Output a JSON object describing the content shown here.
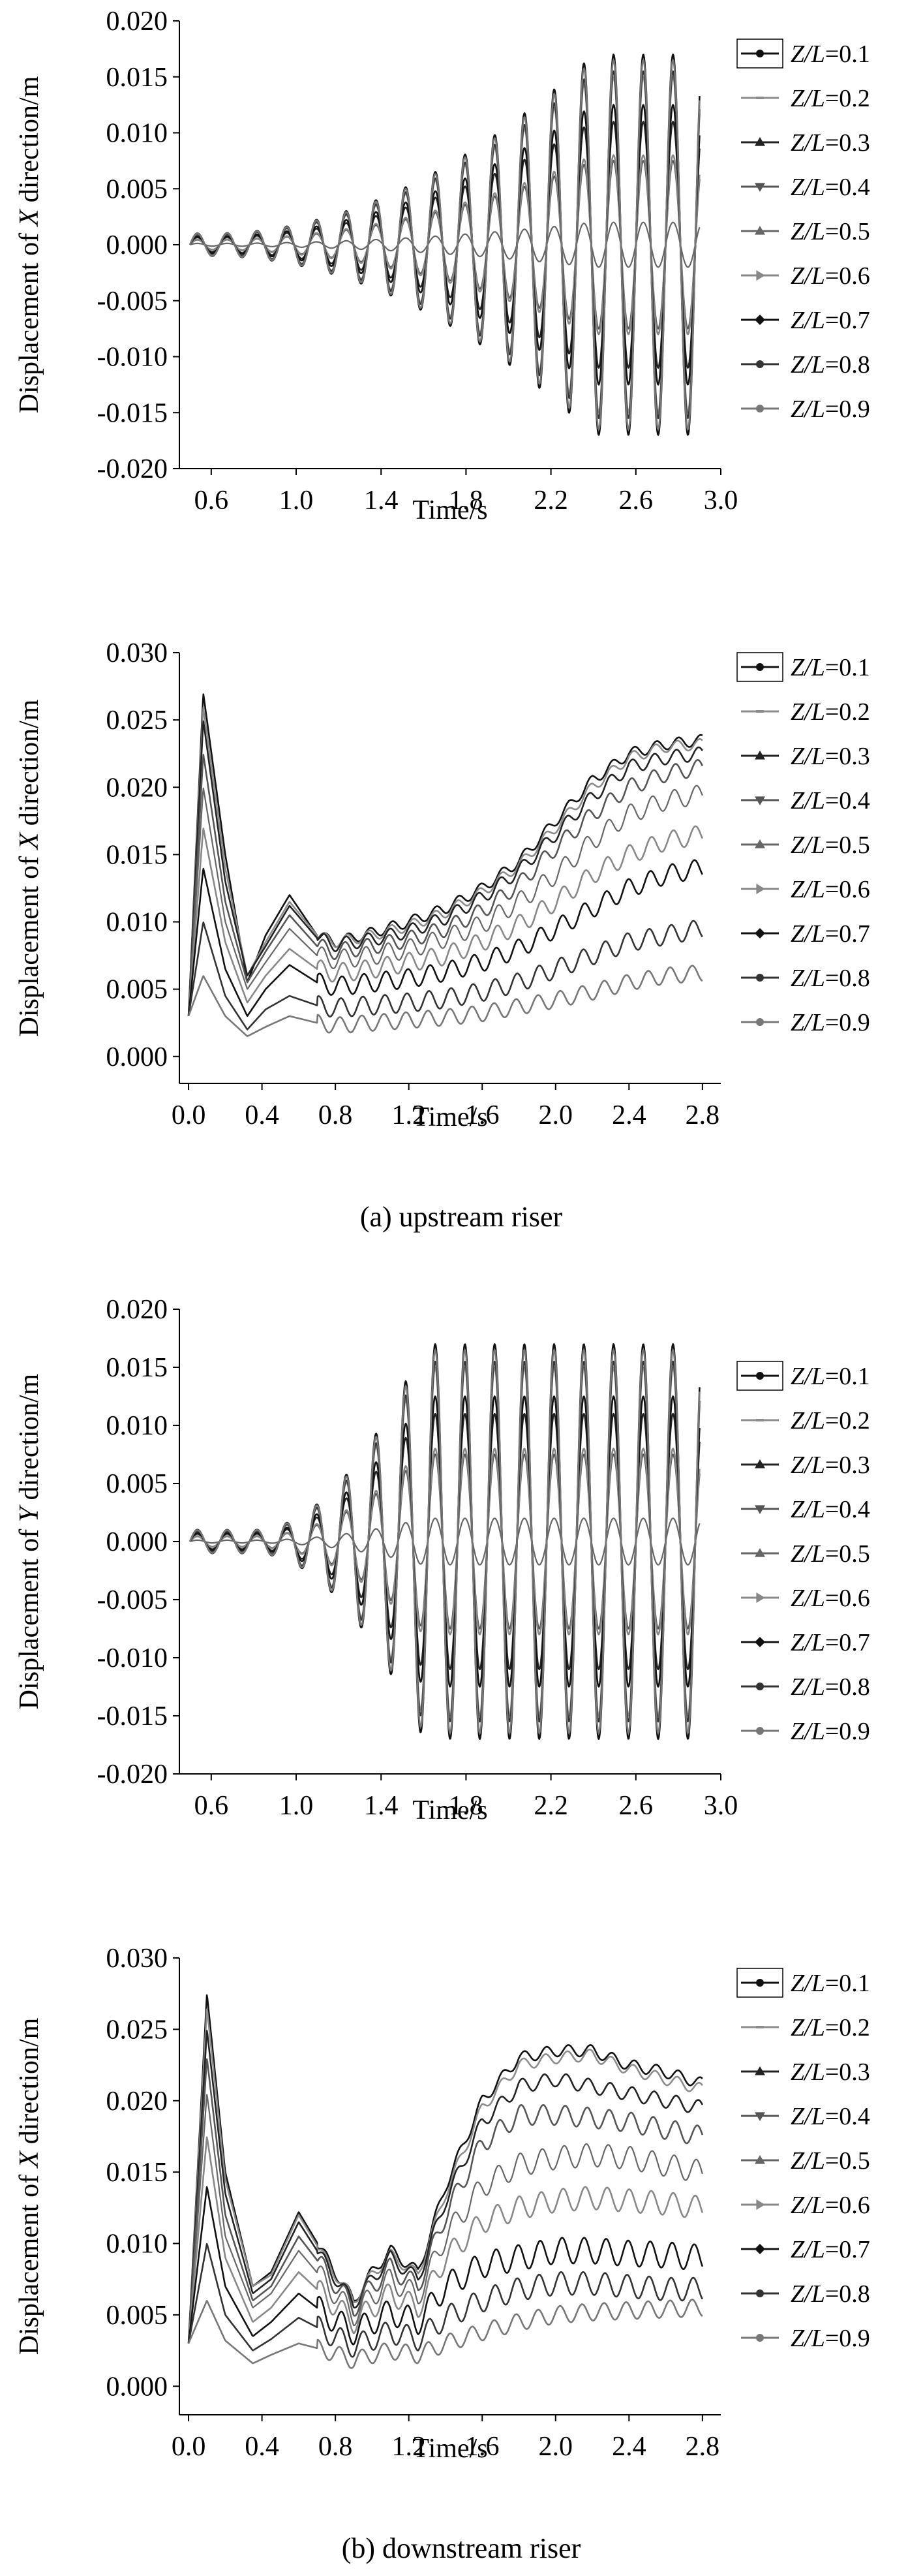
{
  "colors": {
    "axis": "#000000",
    "background": "#ffffff"
  },
  "chart_data": [
    {
      "type": "line",
      "ylabel_prefix": "Displacement of ",
      "ylabel_var": "X",
      "ylabel_suffix": " direction/m",
      "xlabel": "Time/s",
      "xlim": [
        0.45,
        3.0
      ],
      "ylim": [
        -0.02,
        0.02
      ],
      "xticks": [
        0.6,
        1.0,
        1.4,
        1.8,
        2.2,
        2.6,
        3.0
      ],
      "xtick_labels": [
        "0.6",
        "1.0",
        "1.4",
        "1.8",
        "2.2",
        "2.6",
        "3.0"
      ],
      "yticks": [
        0.02,
        0.015,
        0.01,
        0.005,
        0.0,
        -0.005,
        -0.01,
        -0.015,
        -0.02
      ],
      "ytick_labels": [
        "0.020",
        "0.015",
        "0.010",
        "0.005",
        "0.000",
        "-0.005",
        "-0.010",
        "-0.015",
        "-0.020"
      ],
      "legend_position": "right",
      "caption": "",
      "model": {
        "kind": "osc",
        "t0": 0.5,
        "t1": 2.9,
        "period": 0.14,
        "ramp_start": 0.6,
        "ramp_end": 2.4
      },
      "series": [
        {
          "name": "Z/L=0.1",
          "amp": 0.017,
          "color": "#111111",
          "marker": "circle"
        },
        {
          "name": "Z/L=0.2",
          "amp": 0.015,
          "color": "#8c8c8c",
          "marker": "dash"
        },
        {
          "name": "Z/L=0.3",
          "amp": 0.011,
          "color": "#222222",
          "marker": "triangle"
        },
        {
          "name": "Z/L=0.4",
          "amp": 0.0075,
          "color": "#555555",
          "marker": "tri-down"
        },
        {
          "name": "Z/L=0.5",
          "amp": 0.002,
          "color": "#666666",
          "marker": "triangle"
        },
        {
          "name": "Z/L=0.6",
          "amp": 0.008,
          "color": "#888888",
          "marker": "tri-right"
        },
        {
          "name": "Z/L=0.7",
          "amp": 0.0125,
          "color": "#111111",
          "marker": "diamond"
        },
        {
          "name": "Z/L=0.8",
          "amp": 0.0155,
          "color": "#333333",
          "marker": "circle"
        },
        {
          "name": "Z/L=0.9",
          "amp": 0.0165,
          "color": "#777777",
          "marker": "circle"
        }
      ]
    },
    {
      "type": "line",
      "ylabel_prefix": "Displacement of ",
      "ylabel_var": "X",
      "ylabel_suffix": " direction/m",
      "xlabel": "Time/s",
      "xlim": [
        -0.05,
        2.9
      ],
      "ylim": [
        -0.002,
        0.03
      ],
      "xticks": [
        0.0,
        0.4,
        0.8,
        1.2,
        1.6,
        2.0,
        2.4,
        2.8
      ],
      "xtick_labels": [
        "0.0",
        "0.4",
        "0.8",
        "1.2",
        "1.6",
        "2.0",
        "2.4",
        "2.8"
      ],
      "yticks": [
        0.03,
        0.025,
        0.02,
        0.015,
        0.01,
        0.005,
        0.0
      ],
      "ytick_labels": [
        "0.030",
        "0.025",
        "0.020",
        "0.015",
        "0.010",
        "0.005",
        "0.000"
      ],
      "legend_position": "right",
      "caption": "(a) upstream riser",
      "model": {
        "kind": "mean",
        "t0": 0.0,
        "t1": 2.8,
        "period": 0.12,
        "times": [
          0.0,
          0.08,
          0.2,
          0.32,
          0.42,
          0.55,
          0.7,
          0.8,
          1.0,
          1.2,
          1.4,
          1.6,
          1.8,
          2.0,
          2.2,
          2.4,
          2.6,
          2.8
        ]
      },
      "series": [
        {
          "name": "Z/L=0.1",
          "values": [
            0.003,
            0.027,
            0.015,
            0.0055,
            0.009,
            0.012,
            0.009,
            0.0085,
            0.0092,
            0.01,
            0.011,
            0.0125,
            0.0145,
            0.0175,
            0.0205,
            0.0225,
            0.0232,
            0.0235
          ],
          "wobble": 0.0004,
          "color": "#111111",
          "marker": "circle"
        },
        {
          "name": "Z/L=0.2",
          "values": [
            0.003,
            0.026,
            0.014,
            0.006,
            0.0085,
            0.0115,
            0.009,
            0.0085,
            0.009,
            0.0097,
            0.0107,
            0.0122,
            0.0142,
            0.017,
            0.02,
            0.0222,
            0.023,
            0.0232
          ],
          "wobble": 0.0004,
          "color": "#8c8c8c",
          "marker": "dash"
        },
        {
          "name": "Z/L=0.3",
          "values": [
            0.003,
            0.025,
            0.013,
            0.006,
            0.0082,
            0.0112,
            0.0088,
            0.0083,
            0.0087,
            0.0093,
            0.0103,
            0.0118,
            0.0138,
            0.0165,
            0.0193,
            0.0215,
            0.0222,
            0.0225
          ],
          "wobble": 0.0005,
          "color": "#222222",
          "marker": "triangle"
        },
        {
          "name": "Z/L=0.4",
          "values": [
            0.003,
            0.0225,
            0.0115,
            0.0055,
            0.0078,
            0.0105,
            0.0082,
            0.0078,
            0.0082,
            0.0087,
            0.0095,
            0.0108,
            0.0128,
            0.0155,
            0.018,
            0.02,
            0.021,
            0.0215
          ],
          "wobble": 0.0006,
          "color": "#555555",
          "marker": "tri-down"
        },
        {
          "name": "Z/L=0.5",
          "values": [
            0.003,
            0.02,
            0.01,
            0.005,
            0.007,
            0.0095,
            0.0075,
            0.0072,
            0.0075,
            0.008,
            0.0088,
            0.0098,
            0.0115,
            0.0135,
            0.016,
            0.018,
            0.019,
            0.0195
          ],
          "wobble": 0.0007,
          "color": "#666666",
          "marker": "triangle"
        },
        {
          "name": "Z/L=0.6",
          "values": [
            0.003,
            0.017,
            0.0085,
            0.004,
            0.006,
            0.008,
            0.0065,
            0.0062,
            0.0065,
            0.007,
            0.0075,
            0.0085,
            0.0098,
            0.0115,
            0.0135,
            0.015,
            0.016,
            0.0165
          ],
          "wobble": 0.0007,
          "color": "#888888",
          "marker": "tri-right"
        },
        {
          "name": "Z/L=0.7",
          "values": [
            0.003,
            0.014,
            0.0065,
            0.003,
            0.005,
            0.0068,
            0.0055,
            0.0052,
            0.0055,
            0.0058,
            0.0063,
            0.007,
            0.008,
            0.0095,
            0.011,
            0.0125,
            0.0135,
            0.014
          ],
          "wobble": 0.0007,
          "color": "#111111",
          "marker": "diamond"
        },
        {
          "name": "Z/L=0.8",
          "values": [
            0.003,
            0.01,
            0.0045,
            0.002,
            0.0035,
            0.0045,
            0.0038,
            0.0036,
            0.0038,
            0.004,
            0.0043,
            0.0048,
            0.0055,
            0.0065,
            0.0075,
            0.0085,
            0.009,
            0.0095
          ],
          "wobble": 0.0007,
          "color": "#333333",
          "marker": "circle"
        },
        {
          "name": "Z/L=0.9",
          "values": [
            0.003,
            0.006,
            0.003,
            0.0015,
            0.0022,
            0.003,
            0.0025,
            0.0023,
            0.0025,
            0.0027,
            0.0029,
            0.0032,
            0.0037,
            0.0042,
            0.0048,
            0.0055,
            0.006,
            0.0062
          ],
          "wobble": 0.0006,
          "color": "#777777",
          "marker": "circle"
        }
      ]
    },
    {
      "type": "line",
      "ylabel_prefix": "Displacement of ",
      "ylabel_var": "Y",
      "ylabel_suffix": " direction/m",
      "xlabel": "Time/s",
      "xlim": [
        0.45,
        3.0
      ],
      "ylim": [
        -0.02,
        0.02
      ],
      "xticks": [
        0.6,
        1.0,
        1.4,
        1.8,
        2.2,
        2.6,
        3.0
      ],
      "xtick_labels": [
        "0.6",
        "1.0",
        "1.4",
        "1.8",
        "2.2",
        "2.6",
        "3.0"
      ],
      "yticks": [
        0.02,
        0.015,
        0.01,
        0.005,
        0.0,
        -0.005,
        -0.01,
        -0.015,
        -0.02
      ],
      "ytick_labels": [
        "0.020",
        "0.015",
        "0.010",
        "0.005",
        "0.000",
        "-0.005",
        "-0.010",
        "-0.015",
        "-0.020"
      ],
      "legend_position": "right",
      "caption": "",
      "model": {
        "kind": "osc",
        "t0": 0.5,
        "t1": 2.9,
        "period": 0.14,
        "ramp_start": 0.8,
        "ramp_end": 1.6
      },
      "series": [
        {
          "name": "Z/L=0.1",
          "amp": 0.017,
          "color": "#111111",
          "marker": "circle"
        },
        {
          "name": "Z/L=0.2",
          "amp": 0.015,
          "color": "#8c8c8c",
          "marker": "dash"
        },
        {
          "name": "Z/L=0.3",
          "amp": 0.011,
          "color": "#222222",
          "marker": "triangle"
        },
        {
          "name": "Z/L=0.4",
          "amp": 0.0075,
          "color": "#555555",
          "marker": "tri-down"
        },
        {
          "name": "Z/L=0.5",
          "amp": 0.002,
          "color": "#666666",
          "marker": "triangle"
        },
        {
          "name": "Z/L=0.6",
          "amp": 0.008,
          "color": "#888888",
          "marker": "tri-right"
        },
        {
          "name": "Z/L=0.7",
          "amp": 0.0125,
          "color": "#111111",
          "marker": "diamond"
        },
        {
          "name": "Z/L=0.8",
          "amp": 0.0155,
          "color": "#333333",
          "marker": "circle"
        },
        {
          "name": "Z/L=0.9",
          "amp": 0.0165,
          "color": "#777777",
          "marker": "circle"
        }
      ]
    },
    {
      "type": "line",
      "ylabel_prefix": "Displacement of ",
      "ylabel_var": "X",
      "ylabel_suffix": " direction/m",
      "xlabel": "Time/s",
      "xlim": [
        -0.05,
        2.9
      ],
      "ylim": [
        -0.002,
        0.03
      ],
      "xticks": [
        0.0,
        0.4,
        0.8,
        1.2,
        1.6,
        2.0,
        2.4,
        2.8
      ],
      "xtick_labels": [
        "0.0",
        "0.4",
        "0.8",
        "1.2",
        "1.6",
        "2.0",
        "2.4",
        "2.8"
      ],
      "yticks": [
        0.03,
        0.025,
        0.02,
        0.015,
        0.01,
        0.005,
        0.0
      ],
      "ytick_labels": [
        "0.030",
        "0.025",
        "0.020",
        "0.015",
        "0.010",
        "0.005",
        "0.000"
      ],
      "legend_position": "right",
      "caption": "(b) downstream riser",
      "model": {
        "kind": "mean",
        "t0": 0.0,
        "t1": 2.8,
        "period": 0.12,
        "times": [
          0.0,
          0.1,
          0.2,
          0.35,
          0.45,
          0.6,
          0.75,
          0.9,
          1.0,
          1.1,
          1.25,
          1.4,
          1.6,
          1.8,
          2.0,
          2.2,
          2.4,
          2.6,
          2.8
        ]
      },
      "series": [
        {
          "name": "Z/L=0.1",
          "values": [
            0.003,
            0.0275,
            0.015,
            0.007,
            0.008,
            0.0122,
            0.009,
            0.006,
            0.008,
            0.0095,
            0.008,
            0.014,
            0.02,
            0.023,
            0.0235,
            0.0235,
            0.0225,
            0.022,
            0.0212
          ],
          "wobble": 0.0004,
          "color": "#111111",
          "marker": "circle"
        },
        {
          "name": "Z/L=0.2",
          "values": [
            0.003,
            0.0265,
            0.0145,
            0.007,
            0.0078,
            0.012,
            0.0088,
            0.006,
            0.0078,
            0.0092,
            0.0078,
            0.0135,
            0.0195,
            0.0225,
            0.023,
            0.0232,
            0.0222,
            0.0215,
            0.0208
          ],
          "wobble": 0.0004,
          "color": "#8c8c8c",
          "marker": "dash"
        },
        {
          "name": "Z/L=0.3",
          "values": [
            0.003,
            0.025,
            0.0135,
            0.0065,
            0.0075,
            0.0115,
            0.0085,
            0.0058,
            0.0075,
            0.009,
            0.0075,
            0.013,
            0.0185,
            0.021,
            0.0215,
            0.021,
            0.0205,
            0.02,
            0.0195
          ],
          "wobble": 0.0005,
          "color": "#222222",
          "marker": "triangle"
        },
        {
          "name": "Z/L=0.4",
          "values": [
            0.003,
            0.023,
            0.012,
            0.006,
            0.007,
            0.0105,
            0.008,
            0.0055,
            0.007,
            0.0083,
            0.007,
            0.012,
            0.017,
            0.019,
            0.019,
            0.0188,
            0.0185,
            0.018,
            0.0175
          ],
          "wobble": 0.0007,
          "color": "#555555",
          "marker": "tri-down"
        },
        {
          "name": "Z/L=0.5",
          "values": [
            0.003,
            0.0205,
            0.0105,
            0.0055,
            0.0065,
            0.0095,
            0.0072,
            0.005,
            0.0063,
            0.0075,
            0.0063,
            0.0105,
            0.014,
            0.0155,
            0.016,
            0.0162,
            0.016,
            0.0155,
            0.015
          ],
          "wobble": 0.0008,
          "color": "#666666",
          "marker": "triangle"
        },
        {
          "name": "Z/L=0.6",
          "values": [
            0.003,
            0.0175,
            0.009,
            0.0045,
            0.0055,
            0.008,
            0.0062,
            0.0045,
            0.0055,
            0.0065,
            0.0055,
            0.009,
            0.0115,
            0.0125,
            0.013,
            0.0132,
            0.013,
            0.0128,
            0.0125
          ],
          "wobble": 0.0008,
          "color": "#888888",
          "marker": "tri-right"
        },
        {
          "name": "Z/L=0.7",
          "values": [
            0.003,
            0.014,
            0.007,
            0.0035,
            0.0045,
            0.0065,
            0.005,
            0.0038,
            0.0045,
            0.0052,
            0.0045,
            0.007,
            0.0085,
            0.009,
            0.0095,
            0.0095,
            0.0093,
            0.0092,
            0.009
          ],
          "wobble": 0.0009,
          "color": "#111111",
          "marker": "diamond"
        },
        {
          "name": "Z/L=0.8",
          "values": [
            0.003,
            0.01,
            0.005,
            0.0025,
            0.0033,
            0.0048,
            0.0038,
            0.0028,
            0.0033,
            0.0038,
            0.0033,
            0.0048,
            0.006,
            0.0068,
            0.0072,
            0.0072,
            0.007,
            0.0068,
            0.0068
          ],
          "wobble": 0.0008,
          "color": "#333333",
          "marker": "circle"
        },
        {
          "name": "Z/L=0.9",
          "values": [
            0.003,
            0.006,
            0.0032,
            0.0016,
            0.0022,
            0.003,
            0.0025,
            0.0018,
            0.0022,
            0.0025,
            0.0022,
            0.003,
            0.0038,
            0.0045,
            0.005,
            0.0052,
            0.0053,
            0.0054,
            0.0055
          ],
          "wobble": 0.0006,
          "color": "#777777",
          "marker": "circle"
        }
      ]
    }
  ]
}
